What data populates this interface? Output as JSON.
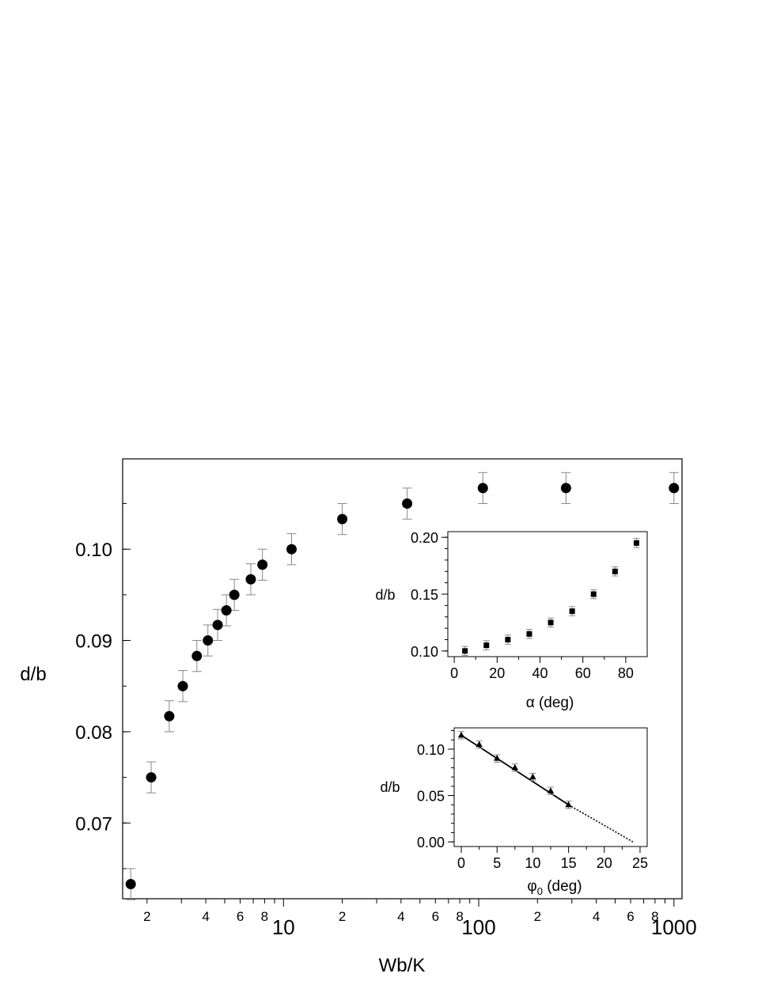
{
  "chart_data": [
    {
      "type": "scatter",
      "xlabel": "Wb/K",
      "ylabel": "d/b",
      "x_scale": "log",
      "xlim": [
        1.5,
        1100
      ],
      "ylim": [
        0.0617,
        0.1099
      ],
      "grid": false,
      "y_ticks": [
        "0.07",
        "0.08",
        "0.09",
        "0.10"
      ],
      "y_tick_values": [
        0.07,
        0.08,
        0.09,
        0.1
      ],
      "x_major_ticks": [
        "10",
        "100",
        "1000"
      ],
      "x_major_values": [
        10,
        100,
        1000
      ],
      "x_minor_labels": [
        "2",
        "4",
        "6",
        "8",
        "2",
        "4",
        "6",
        "8",
        "2",
        "4",
        "6",
        "8"
      ],
      "x_minor_values": [
        2,
        4,
        6,
        8,
        20,
        40,
        60,
        80,
        200,
        400,
        600,
        800
      ],
      "series": [
        {
          "marker": "circle",
          "x": [
            1.65,
            2.1,
            2.6,
            3.05,
            3.6,
            4.1,
            4.6,
            5.1,
            5.6,
            6.8,
            7.8,
            11,
            20,
            43,
            105,
            280,
            1000
          ],
          "y": [
            0.0633,
            0.075,
            0.0817,
            0.085,
            0.0883,
            0.09,
            0.0917,
            0.0933,
            0.095,
            0.0967,
            0.0983,
            0.1,
            0.1033,
            0.105,
            0.1067,
            0.1067,
            0.1067
          ],
          "err": [
            0.0017,
            0.0017,
            0.0017,
            0.0017,
            0.0017,
            0.0017,
            0.0017,
            0.0017,
            0.0017,
            0.0017,
            0.0017,
            0.0017,
            0.0017,
            0.0017,
            0.0017,
            0.0017,
            0.0017
          ]
        }
      ]
    },
    {
      "type": "scatter",
      "xlabel": "α (deg)",
      "ylabel": "d/b",
      "xlim": [
        -3,
        90
      ],
      "ylim": [
        0.095,
        0.205
      ],
      "x_ticks": [
        "0",
        "20",
        "40",
        "60",
        "80"
      ],
      "x_tick_values": [
        0,
        20,
        40,
        60,
        80
      ],
      "y_ticks": [
        "0.10",
        "0.15",
        "0.20"
      ],
      "y_tick_values": [
        0.1,
        0.15,
        0.2
      ],
      "series": [
        {
          "marker": "square",
          "x": [
            5,
            15,
            25,
            35,
            45,
            55,
            65,
            75,
            85
          ],
          "y": [
            0.1,
            0.105,
            0.11,
            0.115,
            0.125,
            0.135,
            0.15,
            0.17,
            0.195
          ],
          "err": [
            0.004,
            0.004,
            0.004,
            0.004,
            0.004,
            0.004,
            0.004,
            0.004,
            0.004
          ]
        }
      ]
    },
    {
      "type": "scatter",
      "xlabel": "φ",
      "xlabel_sub": "0",
      "xlabel_suffix": " (deg)",
      "ylabel": "d/b",
      "xlim": [
        -1,
        26
      ],
      "ylim": [
        -0.005,
        0.123
      ],
      "x_ticks": [
        "0",
        "5",
        "10",
        "15",
        "20",
        "25"
      ],
      "x_tick_values": [
        0,
        5,
        10,
        15,
        20,
        25
      ],
      "y_ticks": [
        "0.00",
        "0.05",
        "0.10"
      ],
      "y_tick_values": [
        0.0,
        0.05,
        0.1
      ],
      "series": [
        {
          "marker": "triangle",
          "x": [
            0,
            2.5,
            5,
            7.5,
            10,
            12.5,
            15
          ],
          "y": [
            0.115,
            0.105,
            0.09,
            0.08,
            0.07,
            0.055,
            0.04
          ],
          "err": [
            0.004,
            0.004,
            0.004,
            0.004,
            0.004,
            0.004,
            0.004
          ]
        }
      ],
      "fit_line": {
        "x": [
          0,
          15
        ],
        "y": [
          0.115,
          0.04
        ]
      },
      "extrapolation": {
        "x": [
          15,
          24
        ],
        "y": [
          0.04,
          0.0
        ]
      }
    }
  ]
}
